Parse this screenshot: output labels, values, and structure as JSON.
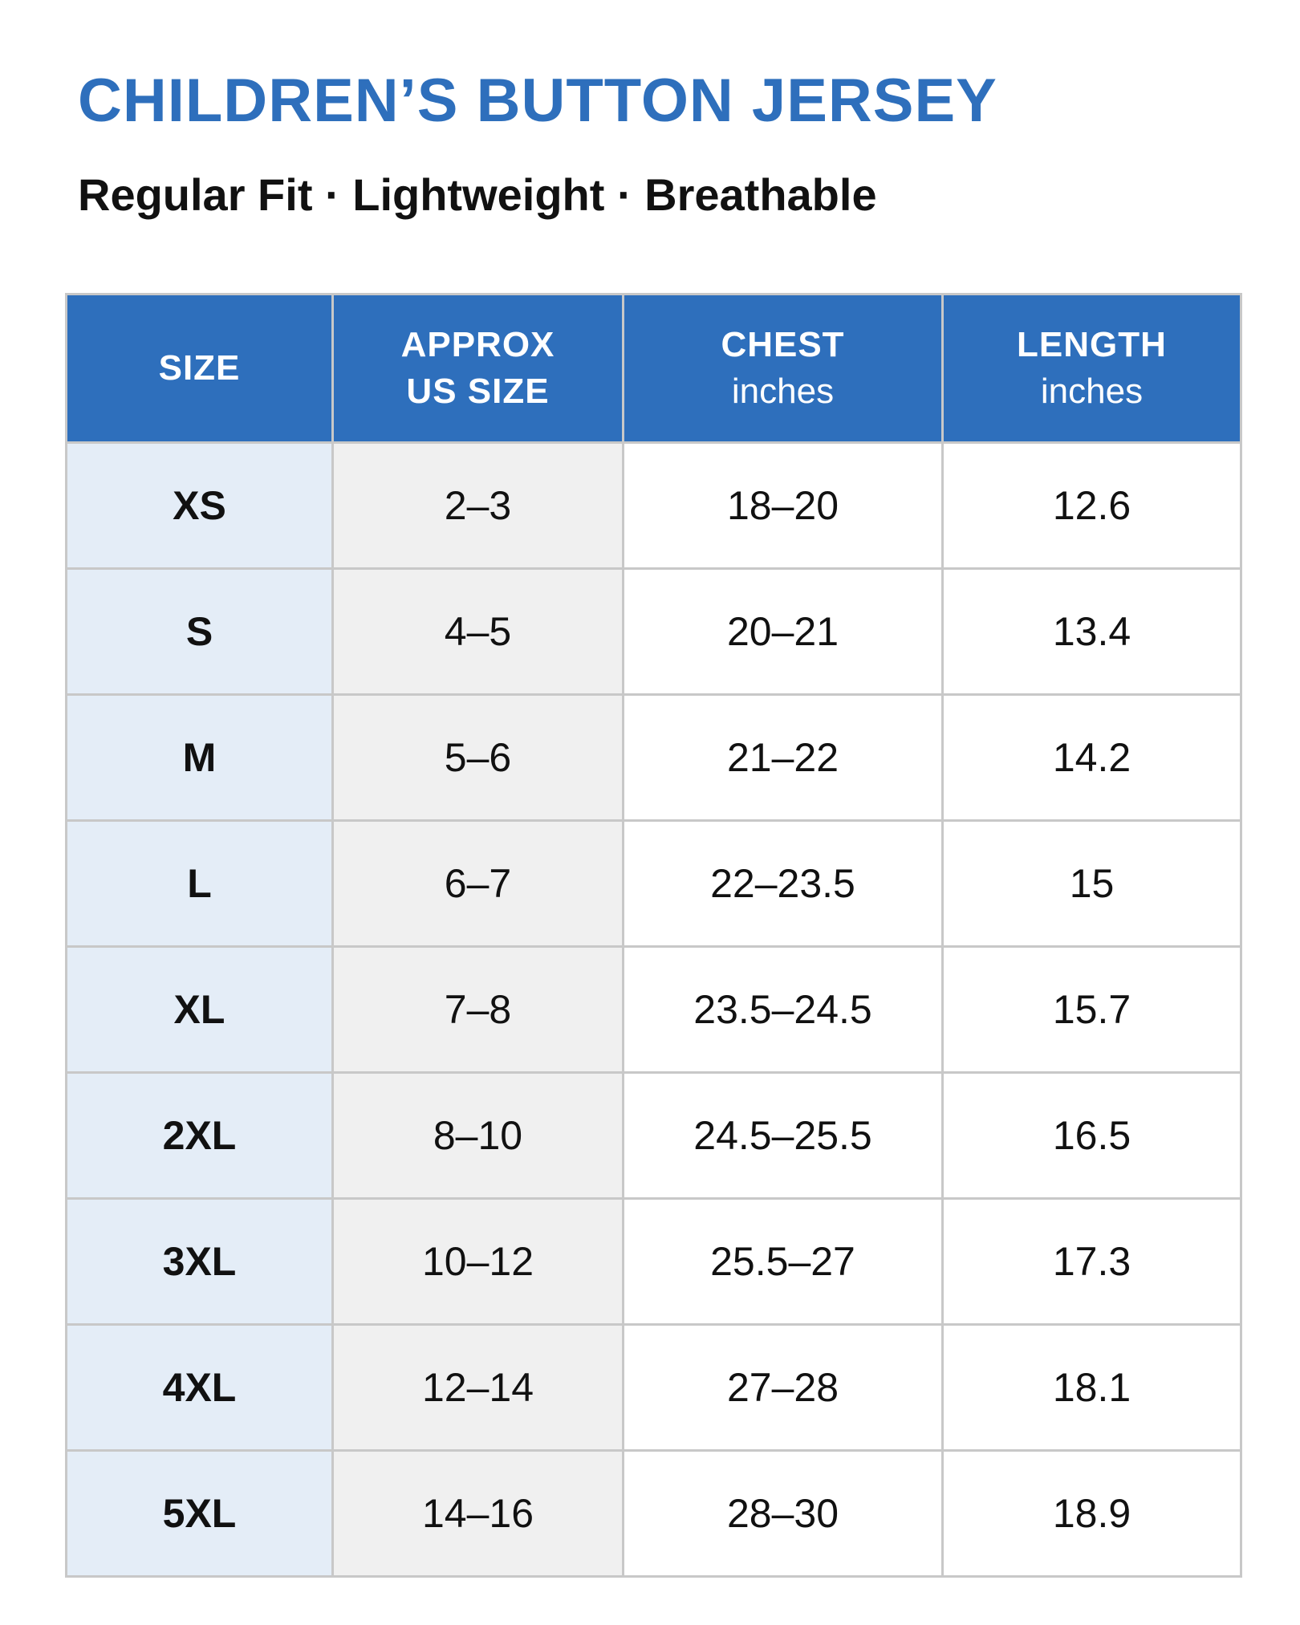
{
  "header": {
    "title": "CHILDREN’S BUTTON JERSEY",
    "subtitle": "Regular Fit · Lightweight · Breathable"
  },
  "table": {
    "columns": [
      {
        "label": "SIZE",
        "unit": ""
      },
      {
        "label_line1": "APPROX",
        "label_line2": "US SIZE"
      },
      {
        "label": "CHEST",
        "unit": "inches"
      },
      {
        "label": "LENGTH",
        "unit": "inches"
      }
    ],
    "rows": [
      {
        "size": "XS",
        "us": "2–3",
        "chest": "18–20",
        "length": "12.6"
      },
      {
        "size": "S",
        "us": "4–5",
        "chest": "20–21",
        "length": "13.4"
      },
      {
        "size": "M",
        "us": "5–6",
        "chest": "21–22",
        "length": "14.2"
      },
      {
        "size": "L",
        "us": "6–7",
        "chest": "22–23.5",
        "length": "15"
      },
      {
        "size": "XL",
        "us": "7–8",
        "chest": "23.5–24.5",
        "length": "15.7"
      },
      {
        "size": "2XL",
        "us": "8–10",
        "chest": "24.5–25.5",
        "length": "16.5"
      },
      {
        "size": "3XL",
        "us": "10–12",
        "chest": "25.5–27",
        "length": "17.3"
      },
      {
        "size": "4XL",
        "us": "12–14",
        "chest": "27–28",
        "length": "18.1"
      },
      {
        "size": "5XL",
        "us": "14–16",
        "chest": "28–30",
        "length": "18.9"
      }
    ]
  },
  "colors": {
    "accent": "#2e6fbc",
    "size_column_bg": "#e4edf7",
    "us_column_bg": "#f0f0f0",
    "border": "#c8c8c8"
  }
}
